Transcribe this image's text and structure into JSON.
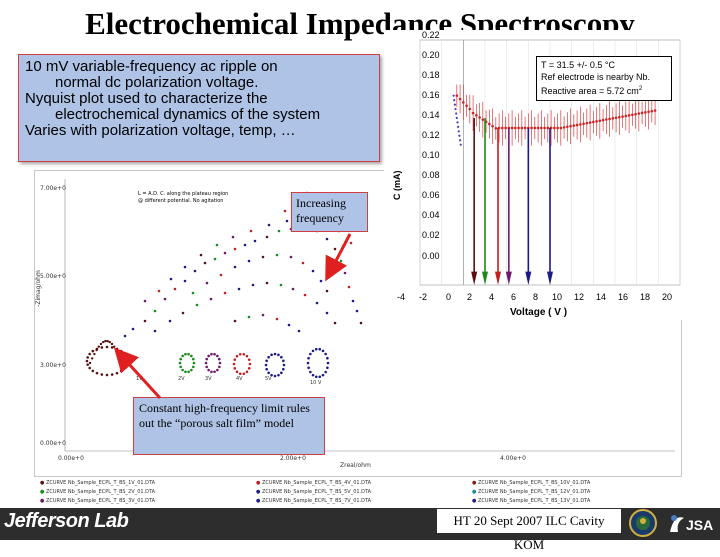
{
  "slide": {
    "title": "Electrochemical Impedance Spectroscopy"
  },
  "bullets": [
    {
      "text": "10 mV variable-frequency ac ripple on",
      "indent": false
    },
    {
      "text": "normal dc polarization voltage.",
      "indent": true
    },
    {
      "text": "Nyquist plot used to characterize the",
      "indent": false
    },
    {
      "text": "electrochemical dynamics of the system",
      "indent": true
    },
    {
      "text": "Varies with polarization voltage, temp, …",
      "indent": false
    }
  ],
  "callouts": {
    "increasing_frequency": "Increasing frequency",
    "constant_limit": "Constant high-frequency limit rules out the “porous salt film” model"
  },
  "voltage_plot": {
    "legend": {
      "line1": "T = 31.5 +/- 0.5 °C",
      "line2": "Ref electrode is nearby Nb.",
      "line3_prefix": "Reactive area = 5.72 cm",
      "line3_sup": "2"
    },
    "y_ticks": [
      "0.22",
      "0.20",
      "0.18",
      "0.16",
      "0.14",
      "0.12",
      "0.10",
      "0.08",
      "0.06",
      "0.04",
      "0.02",
      "0.00"
    ],
    "x_ticks": [
      "-4",
      "-2",
      "0",
      "2",
      "4",
      "6",
      "8",
      "10",
      "12",
      "14",
      "16",
      "18",
      "20"
    ],
    "xlabel": "Voltage ( V )",
    "ylabel": "C (mA)",
    "colors": {
      "curve": "#d42020",
      "markers": [
        "#5a1010",
        "#1a8a1a",
        "#c02020",
        "#6b1a6b",
        "#1a1a8a",
        "#1a1a8a"
      ],
      "lead": "#4040c0"
    }
  },
  "nyquist_plot": {
    "inner_legend": [
      "L = A.D. C. along the plateau region",
      "@ different potential. No agitation"
    ],
    "y_ticks": [
      "7.00e+0",
      "5.00e+0",
      "3.00e+0",
      "0.00e+0"
    ],
    "x_ticks": [
      "0.00e+0",
      "2.00e+0",
      "4.00e+0"
    ],
    "xlabel": "Zreal/ohm",
    "ylabel": "-Zimag/ohm",
    "point_labels": [
      "1V",
      "2V",
      "3V",
      "4V",
      "5V",
      "7V",
      "10 V"
    ],
    "colors": [
      "#5a1010",
      "#1a8a1a",
      "#6b1a6b",
      "#c02020",
      "#1a1a8a",
      "#1a1a8a",
      "#1a1a8a"
    ]
  },
  "files": [
    "ZCURVE Nb_Sample_ECPL_T_BS_1V_01.DTA",
    "ZCURVE Nb_Sample_ECPL_T_BS_2V_01.DTA",
    "ZCURVE Nb_Sample_ECPL_T_BS_3V_01.DTA",
    "ZCURVE Nb_Sample_ECPL_T_BS_4V_01.DTA",
    "ZCURVE Nb_Sample_ECPL_T_BS_5V_01.DTA",
    "ZCURVE Nb_Sample_ECPL_T_BS_7V_01.DTA",
    "ZCURVE Nb_Sample_ECPL_T_BS_10V_01.DTA",
    "ZCURVE Nb_Sample_ECPL_T_BS_12V_01.DTA",
    "ZCURVE Nb_Sample_ECPL_T_BS_13V_01.DTA"
  ],
  "footer": {
    "logo_text": "Jefferson Lab",
    "text": "HT 20 Sept 2007 ILC Cavity KOM",
    "jsa": "JSA",
    "bar_color": "#2d2d2d"
  }
}
